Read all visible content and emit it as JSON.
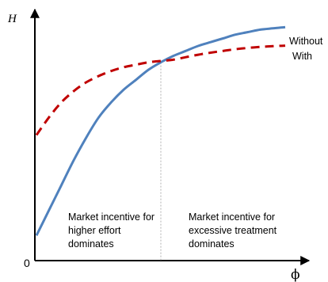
{
  "chart_data": {
    "type": "line",
    "ylabel": "H",
    "xlabel": "ϕ",
    "origin_label": "0",
    "xlim": [
      0,
      100
    ],
    "ylim": [
      0,
      100
    ],
    "crossing_x": 50,
    "series": [
      {
        "name": "Without",
        "color": "#4f81bd",
        "style": "solid",
        "x": [
          0,
          5,
          10,
          15,
          20,
          25,
          30,
          35,
          40,
          45,
          50,
          55,
          60,
          65,
          70,
          75,
          80,
          85,
          90,
          95,
          100
        ],
        "y": [
          10,
          20,
          30,
          40,
          49,
          57,
          63,
          68,
          72,
          76,
          79,
          81.5,
          83.5,
          85.5,
          87,
          88.5,
          90,
          91,
          92,
          92.5,
          93
        ]
      },
      {
        "name": "With",
        "color": "#c00000",
        "style": "dashed",
        "x": [
          0,
          5,
          10,
          15,
          20,
          25,
          30,
          35,
          40,
          45,
          50,
          55,
          60,
          65,
          70,
          75,
          80,
          85,
          90,
          95,
          100
        ],
        "y": [
          50,
          57,
          63,
          67.5,
          71,
          73.5,
          75.5,
          77,
          78,
          79,
          79.5,
          80,
          81,
          82,
          82.8,
          83.5,
          84.2,
          84.7,
          85.1,
          85.4,
          85.6
        ]
      }
    ],
    "annotations": [
      {
        "lines": [
          "Market incentive for",
          "higher effort",
          "dominates"
        ]
      },
      {
        "lines": [
          "Market incentive for",
          "excessive treatment",
          "dominates"
        ]
      }
    ]
  }
}
